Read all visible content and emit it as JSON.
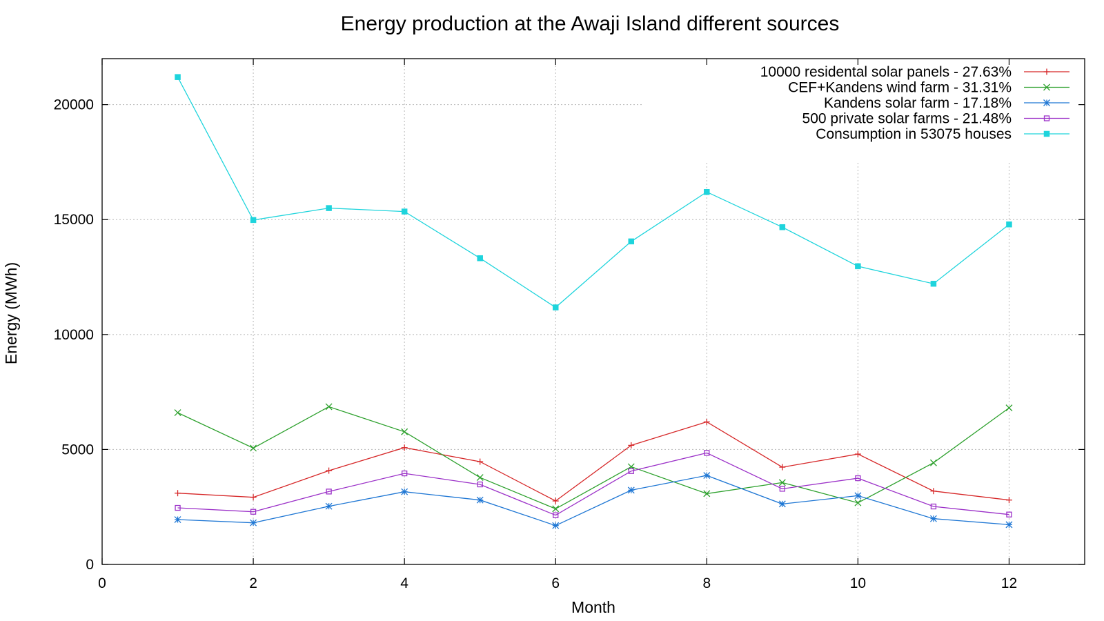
{
  "chart_data": {
    "type": "line",
    "title": "Energy production at the Awaji Island different sources",
    "xlabel": "Month",
    "ylabel": "Energy (MWh)",
    "xlim": [
      0,
      13
    ],
    "ylim": [
      0,
      22000
    ],
    "xticks": [
      0,
      2,
      4,
      6,
      8,
      10,
      12
    ],
    "yticks": [
      0,
      5000,
      10000,
      15000,
      20000
    ],
    "grid": true,
    "legend_position": "top-right",
    "x": [
      1,
      2,
      3,
      4,
      5,
      6,
      7,
      8,
      9,
      10,
      11,
      12
    ],
    "series": [
      {
        "name": "10000 residental solar panels - 27.63%",
        "color": "#d62728",
        "marker": "plus",
        "values": [
          3100,
          2920,
          4080,
          5080,
          4470,
          2760,
          5180,
          6200,
          4230,
          4800,
          3190,
          2800
        ]
      },
      {
        "name": "CEF+Kandens wind farm - 31.31%",
        "color": "#2ca02c",
        "marker": "cross",
        "values": [
          6600,
          5060,
          6860,
          5770,
          3780,
          2420,
          4250,
          3080,
          3560,
          2680,
          4420,
          6810
        ]
      },
      {
        "name": "Kandens solar farm - 17.18%",
        "color": "#1f77d4",
        "marker": "star",
        "values": [
          1950,
          1810,
          2530,
          3160,
          2800,
          1690,
          3230,
          3870,
          2630,
          2990,
          1990,
          1730
        ]
      },
      {
        "name": "500 private solar farms - 21.48%",
        "color": "#9b30c8",
        "marker": "open-square",
        "values": [
          2460,
          2290,
          3170,
          3960,
          3480,
          2140,
          4060,
          4850,
          3290,
          3750,
          2520,
          2170
        ]
      },
      {
        "name": "Consumption in 53075 houses",
        "color": "#1ed4dc",
        "marker": "filled-square",
        "values": [
          21200,
          14980,
          15500,
          15350,
          13320,
          11180,
          14050,
          16200,
          14670,
          12970,
          12210,
          14790
        ]
      }
    ]
  }
}
